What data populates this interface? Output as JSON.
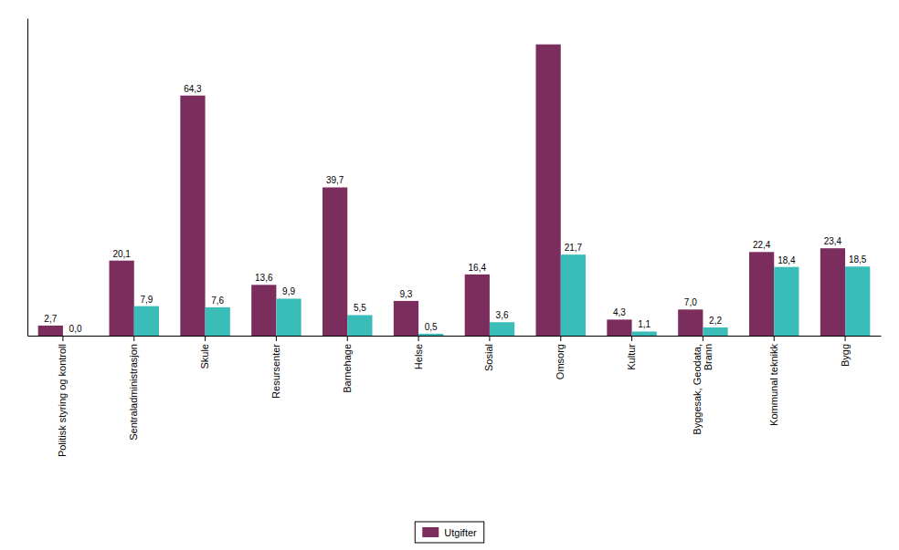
{
  "chart_data": {
    "type": "bar",
    "categories": [
      "Politisk styring og kontroll",
      "Sentraladministrasjon",
      "Skule",
      "Resursenter",
      "Barnehage",
      "Helse",
      "Sosial",
      "Omsorg",
      "Kultur",
      "Byggesak, Geodata,\nBrann",
      "Kommunal teknikk",
      "Bygg"
    ],
    "series": [
      {
        "name": "Utgifter",
        "color": "#7B2D5E",
        "values": [
          2.7,
          20.1,
          64.3,
          13.6,
          39.7,
          9.3,
          16.4,
          78.0,
          4.3,
          7.0,
          22.4,
          23.4
        ],
        "value_labels": [
          "2,7",
          "20,1",
          "64,3",
          "13,6",
          "39,7",
          "9,3",
          "16,4",
          null,
          "4,3",
          "7,0",
          "22,4",
          "23,4"
        ]
      },
      {
        "color": "#3ABCB8",
        "values": [
          0.0,
          7.9,
          7.6,
          9.9,
          5.5,
          0.5,
          3.6,
          21.7,
          1.1,
          2.2,
          18.4,
          18.5
        ],
        "value_labels": [
          "0,0",
          "7,9",
          "7,6",
          "9,9",
          "5,5",
          "0,5",
          "3,6",
          "21,7",
          "1,1",
          "2,2",
          "18,4",
          "18,5"
        ]
      }
    ],
    "ylim": [
      0,
      85
    ],
    "data_labels": true,
    "tick_labels": "x",
    "legend": "bottom"
  }
}
